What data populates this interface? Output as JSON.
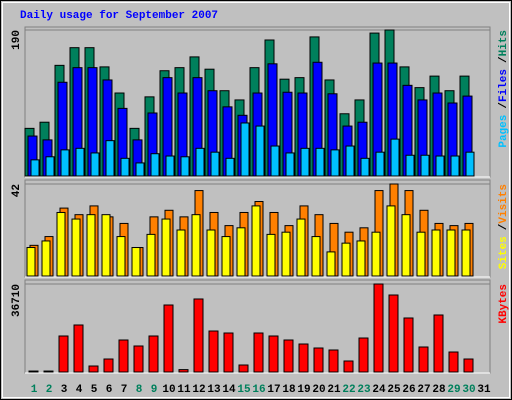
{
  "chart_data": [
    {
      "type": "bar",
      "title": "Daily usage for September 2007",
      "title_color": "#0000ff",
      "ylim": [
        0,
        190
      ],
      "yticks": [
        190
      ],
      "grid": true,
      "legend_separator": "/",
      "series": [
        {
          "name": "Hits",
          "color": "#00805c",
          "values": [
            62,
            70,
            144,
            167,
            167,
            142,
            108,
            62,
            103,
            137,
            141,
            155,
            139,
            111,
            99,
            141,
            177,
            126,
            128,
            181,
            125,
            81,
            99,
            186,
            190,
            142,
            115,
            130,
            111,
            130,
            null
          ]
        },
        {
          "name": "Files",
          "color": "#0000ff",
          "values": [
            52,
            47,
            122,
            141,
            141,
            125,
            88,
            47,
            82,
            128,
            108,
            128,
            111,
            90,
            79,
            108,
            146,
            109,
            108,
            148,
            107,
            65,
            70,
            147,
            147,
            118,
            99,
            108,
            95,
            104,
            null
          ]
        },
        {
          "name": "Pages",
          "color": "#00c0ff",
          "values": [
            21,
            25,
            34,
            36,
            30,
            46,
            23,
            17,
            29,
            26,
            25,
            36,
            31,
            23,
            69,
            65,
            39,
            30,
            36,
            36,
            34,
            39,
            23,
            31,
            48,
            27,
            27,
            26,
            26,
            31,
            null
          ]
        }
      ]
    },
    {
      "type": "bar",
      "ylim": [
        0,
        42
      ],
      "yticks": [
        42
      ],
      "grid": true,
      "legend_separator": "/",
      "series": [
        {
          "name": "Visits",
          "color": "#ff8000",
          "values": [
            14,
            18,
            31,
            28,
            32,
            27,
            24,
            13,
            27,
            30,
            27,
            39,
            29,
            23,
            29,
            34,
            29,
            23,
            32,
            28,
            24,
            20,
            22,
            39,
            42,
            39,
            30,
            24,
            23,
            24,
            null
          ]
        },
        {
          "name": "Sites",
          "color": "#ffff00",
          "values": [
            13,
            16,
            29,
            26,
            28,
            28,
            18,
            13,
            19,
            26,
            21,
            28,
            21,
            18,
            22,
            32,
            19,
            20,
            26,
            18,
            11,
            15,
            16,
            20,
            32,
            28,
            20,
            21,
            21,
            21,
            null
          ]
        }
      ]
    },
    {
      "type": "bar",
      "ylim": [
        0,
        36710
      ],
      "yticks": [
        36710
      ],
      "grid": true,
      "categories": [
        "1",
        "2",
        "3",
        "4",
        "5",
        "6",
        "7",
        "8",
        "9",
        "10",
        "11",
        "12",
        "13",
        "14",
        "15",
        "16",
        "17",
        "18",
        "19",
        "20",
        "21",
        "22",
        "23",
        "24",
        "25",
        "26",
        "27",
        "28",
        "29",
        "30",
        "31"
      ],
      "category_colors": [
        "#00805c",
        "#00805c",
        "#000000",
        "#000000",
        "#000000",
        "#000000",
        "#000000",
        "#00805c",
        "#00805c",
        "#000000",
        "#000000",
        "#000000",
        "#000000",
        "#000000",
        "#00805c",
        "#00805c",
        "#000000",
        "#000000",
        "#000000",
        "#000000",
        "#000000",
        "#00805c",
        "#00805c",
        "#000000",
        "#000000",
        "#000000",
        "#000000",
        "#000000",
        "#00805c",
        "#00805c",
        "#000000"
      ],
      "series": [
        {
          "name": "KBytes",
          "color": "#ff0000",
          "values": [
            400,
            400,
            15020,
            19610,
            2500,
            5420,
            13350,
            10850,
            15020,
            27950,
            1000,
            30460,
            17100,
            16270,
            2920,
            16270,
            15020,
            13350,
            11680,
            10010,
            9180,
            4590,
            14180,
            36710,
            32120,
            22530,
            10430,
            23780,
            8340,
            5420,
            null
          ]
        }
      ]
    }
  ]
}
